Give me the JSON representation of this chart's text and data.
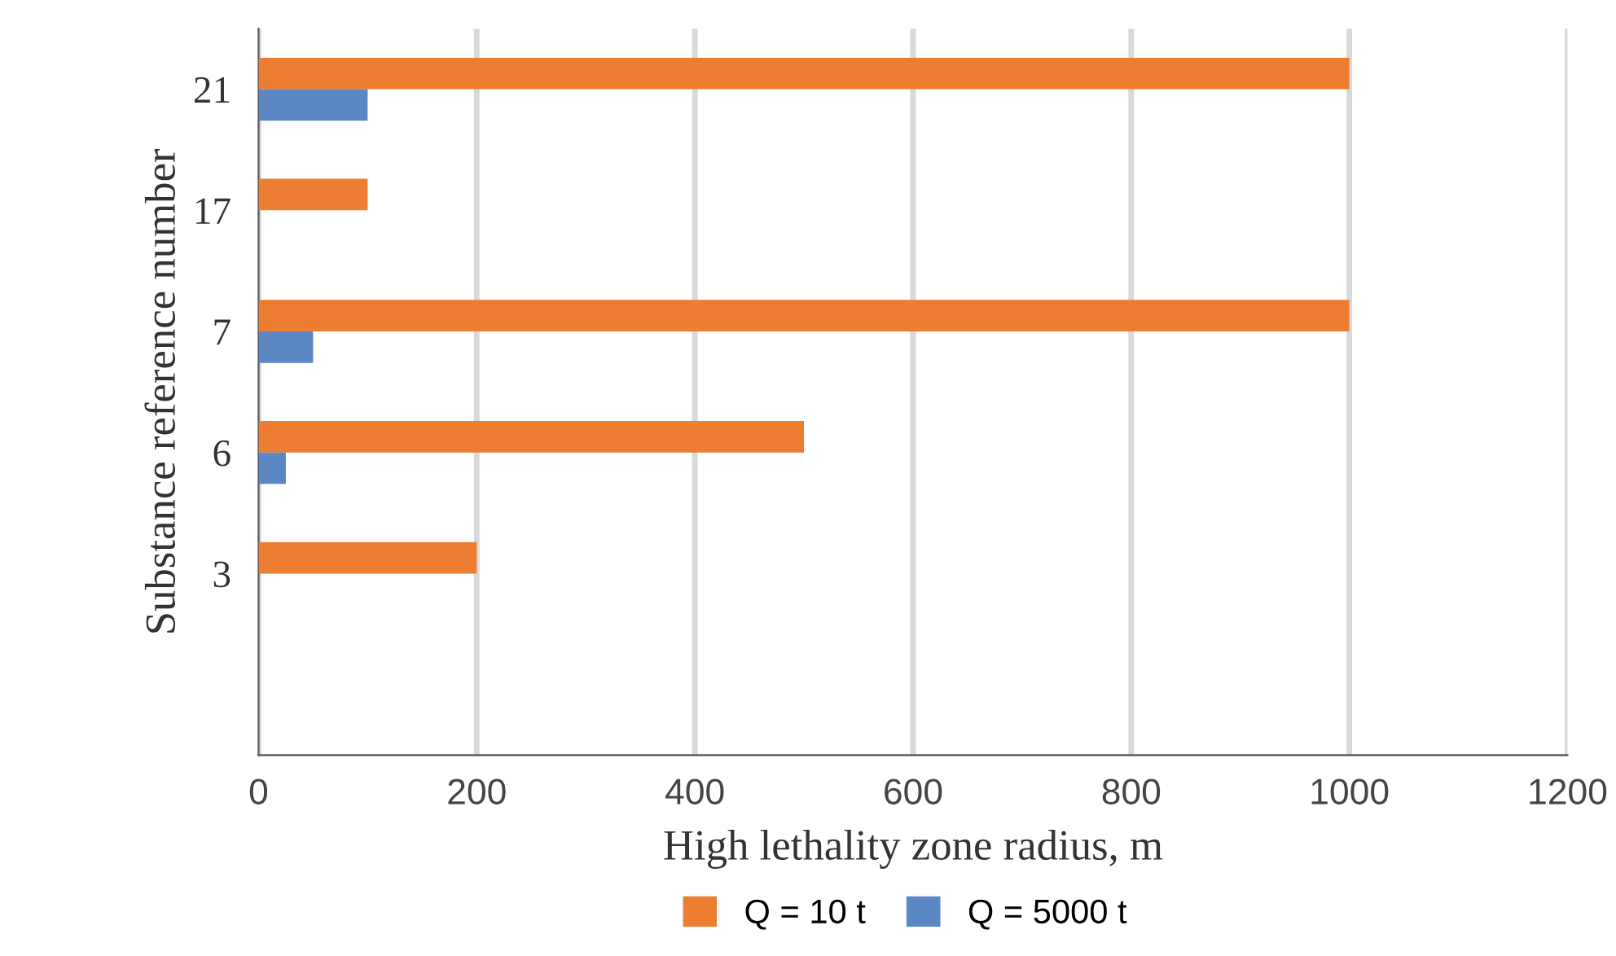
{
  "chart_data": {
    "type": "bar",
    "orientation": "horizontal",
    "categories": [
      "21",
      "17",
      "7",
      "6",
      "3",
      null
    ],
    "series": [
      {
        "name": "Q = 10 t",
        "color": "#ed7d31",
        "values": [
          1000,
          100,
          1000,
          500,
          200,
          null
        ]
      },
      {
        "name": "Q = 5000 t",
        "color": "#5b87c5",
        "values": [
          100,
          null,
          50,
          25,
          null,
          null
        ]
      }
    ],
    "xlim": [
      0,
      1200
    ],
    "xticks": [
      0,
      200,
      400,
      600,
      800,
      1000,
      1200
    ],
    "xlabel": "High lethality zone radius, m",
    "ylabel": "Substance reference number",
    "grid": "x",
    "legend": "bottom"
  }
}
